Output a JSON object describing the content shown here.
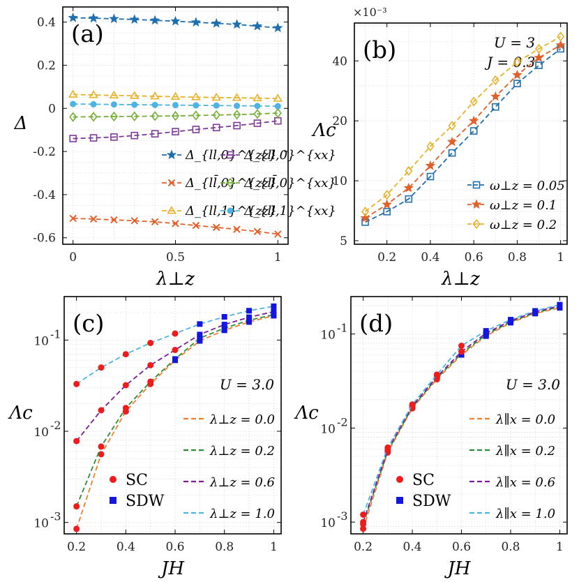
{
  "chart_data": [
    {
      "id": "a",
      "type": "line",
      "panel_label": "(a)",
      "xlabel": "λ⊥z",
      "ylabel": "Δ",
      "xlim": [
        -0.05,
        1.05
      ],
      "ylim": [
        -0.63,
        0.47
      ],
      "xticks": [
        0,
        0.5,
        1
      ],
      "xtick_labels": [
        "0",
        "0.5",
        "1"
      ],
      "yticks": [
        -0.6,
        -0.4,
        -0.2,
        0,
        0.2,
        0.4
      ],
      "ytick_labels": [
        "-0.6",
        "-0.4",
        "-0.2",
        "0",
        "0.2",
        "0.4"
      ],
      "grid": true,
      "legend_position": "lower-right",
      "x": [
        0,
        0.1,
        0.2,
        0.3,
        0.4,
        0.5,
        0.6,
        0.7,
        0.8,
        0.9,
        1.0
      ],
      "series": [
        {
          "name": "Δ_{ll,0}^{zz}",
          "color": "#1f6fae",
          "marker": "star",
          "values": [
            0.42,
            0.418,
            0.415,
            0.412,
            0.408,
            0.404,
            0.399,
            0.394,
            0.389,
            0.381,
            0.373
          ]
        },
        {
          "name": "Δ_{ll̄,0}^{zz}",
          "color": "#e0602a",
          "marker": "x",
          "values": [
            -0.51,
            -0.513,
            -0.517,
            -0.521,
            -0.526,
            -0.534,
            -0.543,
            -0.552,
            -0.561,
            -0.571,
            -0.583
          ]
        },
        {
          "name": "Δ_{ll,1}^{zz}",
          "color": "#e8b228",
          "marker": "triangle",
          "values": [
            0.064,
            0.062,
            0.06,
            0.058,
            0.056,
            0.054,
            0.052,
            0.05,
            0.049,
            0.047,
            0.045
          ]
        },
        {
          "name": "Δ_{ll,0}^{xx}",
          "color": "#7e3b9a",
          "marker": "square",
          "values": [
            -0.14,
            -0.137,
            -0.133,
            -0.126,
            -0.118,
            -0.108,
            -0.098,
            -0.089,
            -0.08,
            -0.069,
            -0.058
          ]
        },
        {
          "name": "Δ_{ll̄,0}^{xx}",
          "color": "#75ad36",
          "marker": "diamond",
          "values": [
            -0.04,
            -0.039,
            -0.038,
            -0.037,
            -0.036,
            -0.035,
            -0.033,
            -0.031,
            -0.029,
            -0.026,
            -0.022
          ]
        },
        {
          "name": "Δ_{ll,1}^{xx}",
          "color": "#4db3e2",
          "marker": "circle",
          "values": [
            0.02,
            0.019,
            0.018,
            0.017,
            0.016,
            0.015,
            0.014,
            0.013,
            0.012,
            0.011,
            0.01
          ]
        }
      ]
    },
    {
      "id": "b",
      "type": "line",
      "panel_label": "(b)",
      "xlabel": "λ⊥z",
      "ylabel": "Λc",
      "scale_label": "×10⁻³",
      "annotation": [
        "U = 3",
        "J = 0.3"
      ],
      "yscale": "log",
      "xlim": [
        0.05,
        1.03
      ],
      "ylim": [
        4.8,
        62
      ],
      "xticks": [
        0.2,
        0.4,
        0.6,
        0.8,
        1
      ],
      "xtick_labels": [
        "0.2",
        "0.4",
        "0.6",
        "0.8",
        "1"
      ],
      "yticks": [
        5,
        10,
        20,
        40
      ],
      "ytick_labels": [
        "5",
        "10",
        "20",
        "40"
      ],
      "grid": true,
      "legend_position": "lower-right",
      "x": [
        0.1,
        0.2,
        0.3,
        0.4,
        0.5,
        0.6,
        0.7,
        0.8,
        0.9,
        1.0
      ],
      "series": [
        {
          "name": "ω⊥z = 0.05",
          "color": "#1f6fae",
          "marker": "square",
          "values": [
            6.2,
            7.0,
            8.1,
            10.5,
            13.8,
            17.8,
            23.5,
            30.8,
            38.0,
            46.0
          ]
        },
        {
          "name": "ω⊥z = 0.1",
          "color": "#e0602a",
          "marker": "star",
          "values": [
            6.5,
            7.6,
            9.2,
            11.9,
            15.7,
            20.0,
            26.5,
            34.0,
            41.5,
            48.0
          ]
        },
        {
          "name": "ω⊥z = 0.2",
          "color": "#e8b228",
          "marker": "diamond",
          "values": [
            7.0,
            8.5,
            11.2,
            14.9,
            18.9,
            25.0,
            32.0,
            39.5,
            46.0,
            53.0
          ]
        }
      ]
    },
    {
      "id": "c",
      "type": "scatter",
      "panel_label": "(c)",
      "xlabel": "JH",
      "ylabel": "Λc",
      "annotation": "U = 3.0",
      "yscale": "log",
      "xlim": [
        0.15,
        1.03
      ],
      "ylim": [
        0.00075,
        0.3
      ],
      "xticks": [
        0.2,
        0.4,
        0.6,
        0.8,
        1
      ],
      "xtick_labels": [
        "0.2",
        "0.4",
        "0.6",
        "0.8",
        "1"
      ],
      "yticks": [
        0.001,
        0.01,
        0.1
      ],
      "ytick_labels": [
        "10",
        "10",
        "10"
      ],
      "ytick_exponents": [
        "-3",
        "-2",
        "-1"
      ],
      "grid": true,
      "legend_position": "right",
      "x": [
        0.2,
        0.3,
        0.4,
        0.5,
        0.6,
        0.7,
        0.8,
        0.9,
        1.0
      ],
      "series": [
        {
          "name": "λ⊥z = 0.0",
          "color": "#ee7f2d",
          "values": [
            0.00085,
            0.0056,
            0.0165,
            0.033,
            0.06,
            0.098,
            0.128,
            0.158,
            0.185
          ]
        },
        {
          "name": "λ⊥z = 0.2",
          "color": "#2e8b3a",
          "values": [
            0.0015,
            0.0068,
            0.018,
            0.035,
            0.062,
            0.105,
            0.135,
            0.165,
            0.19
          ]
        },
        {
          "name": "λ⊥z = 0.6",
          "color": "#7a1b9a",
          "values": [
            0.0078,
            0.017,
            0.032,
            0.053,
            0.078,
            0.115,
            0.148,
            0.178,
            0.205
          ]
        },
        {
          "name": "λ⊥z = 1.0",
          "color": "#4db3e2",
          "values": [
            0.033,
            0.05,
            0.07,
            0.093,
            0.118,
            0.15,
            0.18,
            0.21,
            0.235
          ]
        }
      ],
      "markers": [
        {
          "name": "SC",
          "color": "#ee1c1c",
          "shape": "circle",
          "x_max": 0.6
        },
        {
          "name": "SDW",
          "color": "#1515e0",
          "shape": "square",
          "x_min": 0.6
        }
      ]
    },
    {
      "id": "d",
      "type": "scatter",
      "panel_label": "(d)",
      "xlabel": "JH",
      "ylabel": "Λc",
      "annotation": "U = 3.0",
      "yscale": "log",
      "xlim": [
        0.15,
        1.03
      ],
      "ylim": [
        0.00075,
        0.25
      ],
      "xticks": [
        0.2,
        0.4,
        0.6,
        0.8,
        1
      ],
      "xtick_labels": [
        "0.2",
        "0.4",
        "0.6",
        "0.8",
        "1"
      ],
      "yticks": [
        0.001,
        0.01,
        0.1
      ],
      "ytick_labels": [
        "10",
        "10",
        "10"
      ],
      "ytick_exponents": [
        "-3",
        "-2",
        "-1"
      ],
      "grid": true,
      "legend_position": "right",
      "x": [
        0.2,
        0.3,
        0.4,
        0.5,
        0.6,
        0.7,
        0.8,
        0.9,
        1.0
      ],
      "series": [
        {
          "name": "λ∥x = 0.0",
          "color": "#ee7f2d",
          "values": [
            0.00085,
            0.0055,
            0.0162,
            0.033,
            0.06,
            0.095,
            0.132,
            0.165,
            0.19
          ]
        },
        {
          "name": "λ∥x = 0.2",
          "color": "#2e8b3a",
          "values": [
            0.00095,
            0.0057,
            0.0166,
            0.034,
            0.062,
            0.098,
            0.135,
            0.168,
            0.195
          ]
        },
        {
          "name": "λ∥x = 0.6",
          "color": "#7a1b9a",
          "values": [
            0.001,
            0.0059,
            0.0171,
            0.035,
            0.065,
            0.102,
            0.138,
            0.172,
            0.2
          ]
        },
        {
          "name": "λ∥x = 1.0",
          "color": "#4db3e2",
          "values": [
            0.0012,
            0.0062,
            0.0178,
            0.037,
            0.075,
            0.108,
            0.142,
            0.176,
            0.205
          ]
        }
      ],
      "markers": [
        {
          "name": "SC",
          "color": "#ee1c1c",
          "shape": "circle",
          "x_max": 0.6
        },
        {
          "name": "SDW",
          "color": "#1515e0",
          "shape": "square",
          "x_min": 0.6
        }
      ]
    }
  ]
}
